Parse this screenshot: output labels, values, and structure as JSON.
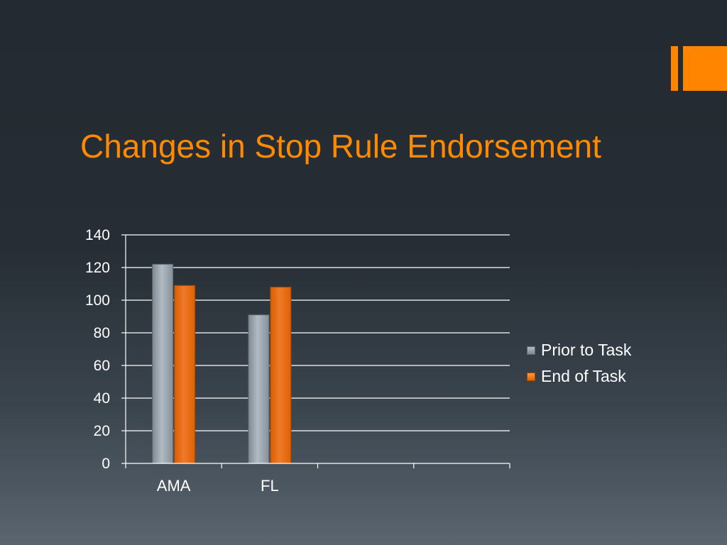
{
  "title": "Changes in Stop Rule Endorsement",
  "colors": {
    "title": "#ff8a00",
    "accent": "#ff8400",
    "prior_top": "#b1bbc4",
    "prior_bottom": "#7d8790",
    "end_top": "#ff9a42",
    "end_bottom": "#e06200",
    "gridline": "#ffffff",
    "text": "#ffffff"
  },
  "chart_data": {
    "type": "bar",
    "categories": [
      "AMA",
      "FL",
      "",
      ""
    ],
    "series": [
      {
        "name": "Prior to Task",
        "values": [
          122,
          91,
          null,
          null
        ]
      },
      {
        "name": "End of Task",
        "values": [
          109,
          108,
          null,
          null
        ]
      }
    ],
    "ylim": [
      0,
      140
    ],
    "yticks": [
      "0",
      "20",
      "40",
      "60",
      "80",
      "100",
      "120",
      "140"
    ],
    "xlabel": "",
    "ylabel": "",
    "grid": true,
    "legend_position": "right"
  },
  "legend": {
    "items": [
      {
        "label": "Prior to Task",
        "swatch": "prior"
      },
      {
        "label": "End of Task",
        "swatch": "end"
      }
    ]
  }
}
